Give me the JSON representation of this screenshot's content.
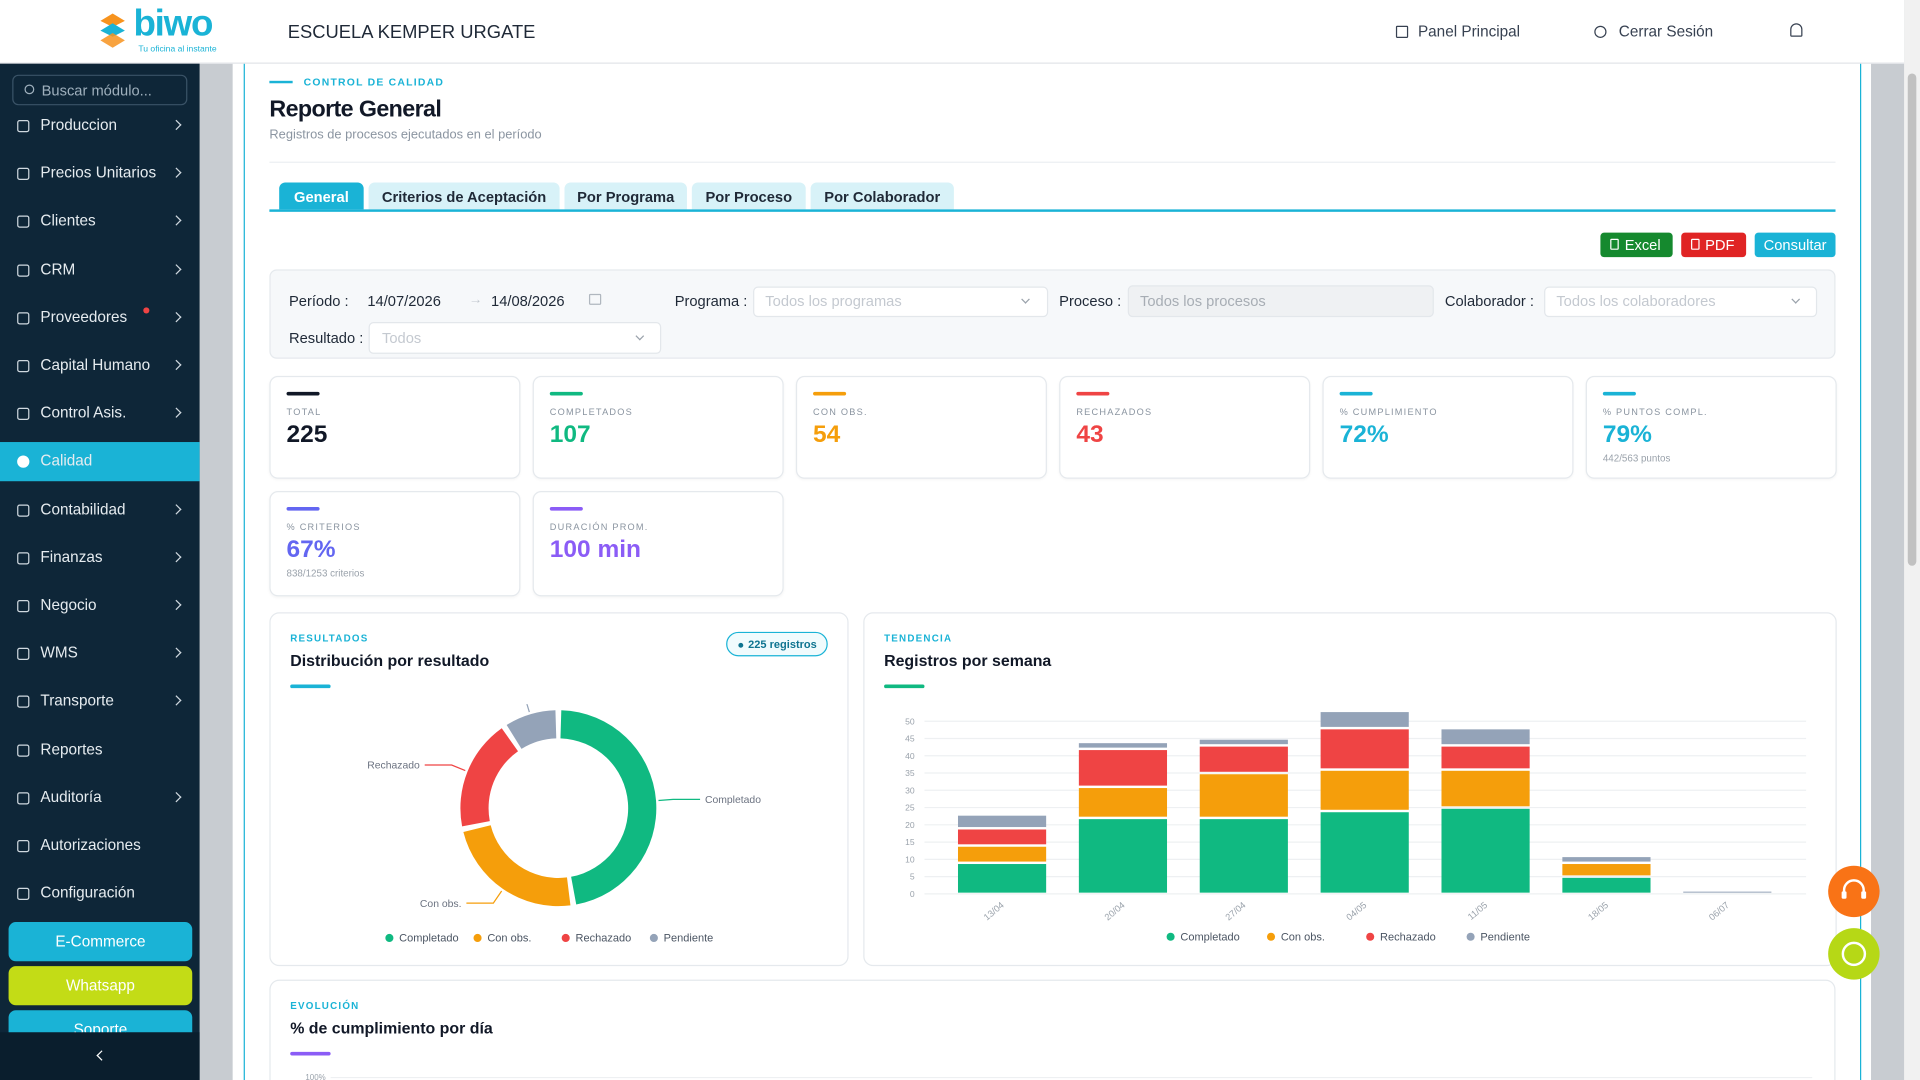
{
  "header": {
    "logo": "biwo",
    "tagline": "Tu oficina al instante",
    "company": "ESCUELA KEMPER URGATE",
    "nav": [
      "Panel Principal",
      "Cerrar Sesión"
    ]
  },
  "sidebar": {
    "search_placeholder": "Buscar módulo...",
    "items": [
      {
        "label": "Produccion",
        "chevron": true
      },
      {
        "label": "Precios Unitarios",
        "chevron": true
      },
      {
        "label": "Clientes",
        "chevron": true
      },
      {
        "label": "CRM",
        "chevron": true
      },
      {
        "label": "Proveedores",
        "chevron": true,
        "dot": true
      },
      {
        "label": "Capital Humano",
        "chevron": true
      },
      {
        "label": "Control Asis.",
        "chevron": true
      },
      {
        "label": "Calidad",
        "chevron": false,
        "active": true
      },
      {
        "label": "Contabilidad",
        "chevron": true
      },
      {
        "label": "Finanzas",
        "chevron": true
      },
      {
        "label": "Negocio",
        "chevron": true
      },
      {
        "label": "WMS",
        "chevron": true
      },
      {
        "label": "Transporte",
        "chevron": true
      },
      {
        "label": "Reportes",
        "chevron": false
      },
      {
        "label": "Auditoría",
        "chevron": true
      },
      {
        "label": "Autorizaciones",
        "chevron": false
      },
      {
        "label": "Configuración",
        "chevron": false
      }
    ],
    "buttons": [
      {
        "label": "E-Commerce",
        "color": "#1ab3d6"
      },
      {
        "label": "Whatsapp",
        "color": "#c3dc16"
      },
      {
        "label": "Soporte",
        "color": "#1ab3d6"
      }
    ]
  },
  "page": {
    "eyebrow": "CONTROL DE CALIDAD",
    "title": "Reporte General",
    "subtitle": "Registros de procesos ejecutados en el período",
    "tabs": [
      "General",
      "Criterios de Aceptación",
      "Por Programa",
      "Por Proceso",
      "Por Colaborador"
    ],
    "actions": [
      {
        "label": "Excel",
        "color": "#15892e"
      },
      {
        "label": "PDF",
        "color": "#e02424"
      },
      {
        "label": "Consultar",
        "color": "#1ab3d6"
      }
    ],
    "filters": {
      "period_label": "Período :",
      "date_from": "14/07/2026",
      "date_to": "14/08/2026",
      "program_label": "Programa :",
      "program_placeholder": "Todos los programas",
      "process_label": "Proceso :",
      "process_placeholder": "Todos los procesos",
      "collaborator_label": "Colaborador :",
      "collaborator_placeholder": "Todos los colaboradores",
      "result_label": "Resultado :",
      "result_placeholder": "Todos"
    },
    "kpis": [
      {
        "label": "TOTAL",
        "value": "225",
        "color": "#111827"
      },
      {
        "label": "COMPLETADOS",
        "value": "107",
        "color": "#10b981"
      },
      {
        "label": "CON OBS.",
        "value": "54",
        "color": "#f59e0b"
      },
      {
        "label": "RECHAZADOS",
        "value": "43",
        "color": "#ef4444"
      },
      {
        "label": "% CUMPLIMIENTO",
        "value": "72%",
        "color": "#1ab3d6"
      },
      {
        "label": "% PUNTOS COMPL.",
        "value": "79%",
        "sub": "442/563 puntos",
        "color": "#1ab3d6"
      },
      {
        "label": "% CRITERIOS",
        "value": "67%",
        "sub": "838/1253 criterios",
        "color": "#6366f1"
      },
      {
        "label": "DURACIÓN PROM.",
        "value": "100 min",
        "color": "#8b5cf6"
      }
    ]
  },
  "charts": [
    {
      "type": "donut",
      "eyebrow": "RESULTADOS",
      "title": "Distribución por resultado",
      "badge": "225 registros",
      "categories": [
        "Completado",
        "Con obs.",
        "Rechazado",
        "Pendiente"
      ],
      "values": [
        107,
        54,
        43,
        21
      ],
      "colors": [
        "#10b981",
        "#f59e0b",
        "#ef4444",
        "#94a3b8"
      ]
    },
    {
      "type": "bar",
      "stacked": true,
      "eyebrow": "TENDENCIA",
      "title": "Registros por semana",
      "categories": [
        "13/04",
        "20/04",
        "27/04",
        "04/05",
        "11/05",
        "18/05",
        "06/07"
      ],
      "series": [
        {
          "name": "Completado",
          "color": "#10b981",
          "values": [
            9,
            22,
            22,
            24,
            25,
            5,
            0
          ]
        },
        {
          "name": "Con obs.",
          "color": "#f59e0b",
          "values": [
            5,
            9,
            13,
            12,
            11,
            4,
            0
          ]
        },
        {
          "name": "Rechazado",
          "color": "#ef4444",
          "values": [
            5,
            11,
            8,
            12,
            7,
            0,
            0
          ]
        },
        {
          "name": "Pendiente",
          "color": "#94a3b8",
          "values": [
            4,
            2,
            2,
            5,
            5,
            2,
            1
          ]
        }
      ],
      "ylim": [
        0,
        55
      ],
      "yticks": [
        0,
        5,
        10,
        15,
        20,
        25,
        30,
        35,
        40,
        45,
        50
      ],
      "grid": true
    },
    {
      "type": "line",
      "eyebrow": "EVOLUCIÓN",
      "title": "% de cumplimiento por día",
      "yticks": [
        {
          "value": 100,
          "label": "100%"
        }
      ]
    }
  ]
}
